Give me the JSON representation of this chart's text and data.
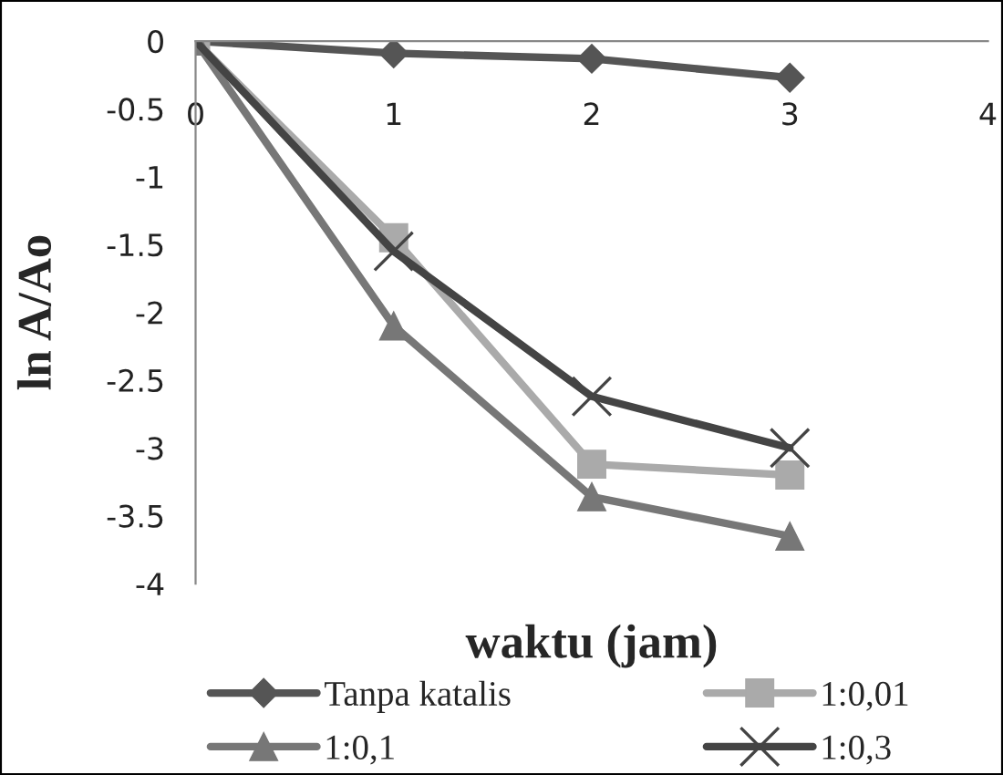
{
  "chart_data": {
    "type": "line",
    "xlabel": "waktu (jam)",
    "ylabel": "ln A/Ao",
    "x": [
      0,
      1,
      2,
      3
    ],
    "series": [
      {
        "name": "Tanpa katalis",
        "color": "#555555",
        "marker": "diamond",
        "values": [
          0,
          -0.09,
          -0.13,
          -0.27
        ]
      },
      {
        "name": "1:0,01",
        "color": "#aaaaaa",
        "marker": "square",
        "values": [
          0,
          -1.45,
          -3.12,
          -3.2
        ]
      },
      {
        "name": "1:0,1",
        "color": "#777777",
        "marker": "triangle",
        "values": [
          0,
          -2.1,
          -3.36,
          -3.65
        ]
      },
      {
        "name": "1:0,3",
        "color": "#444444",
        "marker": "cross",
        "values": [
          0,
          -1.55,
          -2.62,
          -3.0
        ]
      }
    ],
    "xlim": [
      0,
      4
    ],
    "xticks": [
      0,
      1,
      2,
      3,
      4
    ],
    "ylim": [
      -4,
      0
    ],
    "yticks": [
      -4,
      -3.5,
      -3,
      -2.5,
      -2,
      -1.5,
      -1,
      -0.5,
      0
    ],
    "grid": false,
    "legend": "bottom",
    "line_style": "solid"
  }
}
